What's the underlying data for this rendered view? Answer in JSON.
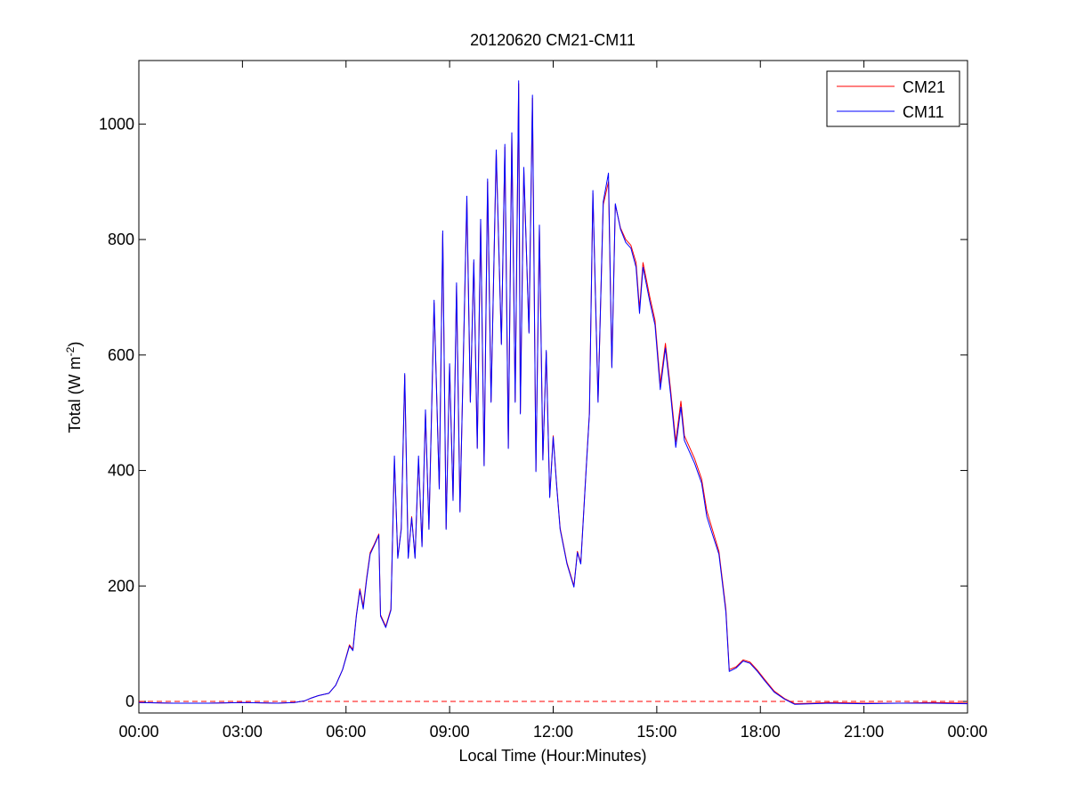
{
  "chart_data": {
    "type": "line",
    "title": "20120620 CM21-CM11",
    "xlabel": "Local Time (Hour:Minutes)",
    "ylabel_main": "Total (W m",
    "ylabel_sup": "-2",
    "ylabel_close": ")",
    "xlim_hours": [
      0,
      24
    ],
    "ylim": [
      -20,
      1110
    ],
    "x_ticks": [
      {
        "hour": 0,
        "label": "00:00"
      },
      {
        "hour": 3,
        "label": "03:00"
      },
      {
        "hour": 6,
        "label": "06:00"
      },
      {
        "hour": 9,
        "label": "09:00"
      },
      {
        "hour": 12,
        "label": "12:00"
      },
      {
        "hour": 15,
        "label": "15:00"
      },
      {
        "hour": 18,
        "label": "18:00"
      },
      {
        "hour": 21,
        "label": "21:00"
      },
      {
        "hour": 24,
        "label": "00:00"
      }
    ],
    "y_ticks": [
      0,
      200,
      400,
      600,
      800,
      1000
    ],
    "zero_line": {
      "y": 0,
      "style": "dashed",
      "color": "#ff0000"
    },
    "legend_position": "top-right",
    "series": [
      {
        "name": "CM21",
        "color": "#ff0000",
        "points": [
          [
            0,
            -2
          ],
          [
            1,
            -3
          ],
          [
            2,
            -3
          ],
          [
            3,
            -2
          ],
          [
            4,
            -3
          ],
          [
            4.5,
            -2
          ],
          [
            4.8,
            1
          ],
          [
            5,
            6
          ],
          [
            5.2,
            10
          ],
          [
            5.5,
            14
          ],
          [
            5.7,
            28
          ],
          [
            5.9,
            55
          ],
          [
            6.1,
            98
          ],
          [
            6.2,
            90
          ],
          [
            6.3,
            150
          ],
          [
            6.4,
            195
          ],
          [
            6.5,
            165
          ],
          [
            6.6,
            215
          ],
          [
            6.7,
            258
          ],
          [
            6.8,
            270
          ],
          [
            6.95,
            290
          ],
          [
            7.0,
            150
          ],
          [
            7.15,
            130
          ],
          [
            7.3,
            160
          ],
          [
            7.4,
            420
          ],
          [
            7.5,
            250
          ],
          [
            7.6,
            300
          ],
          [
            7.7,
            565
          ],
          [
            7.8,
            250
          ],
          [
            7.9,
            320
          ],
          [
            8.0,
            250
          ],
          [
            8.1,
            420
          ],
          [
            8.2,
            270
          ],
          [
            8.3,
            500
          ],
          [
            8.4,
            300
          ],
          [
            8.55,
            690
          ],
          [
            8.7,
            370
          ],
          [
            8.8,
            810
          ],
          [
            8.9,
            300
          ],
          [
            9.0,
            580
          ],
          [
            9.1,
            350
          ],
          [
            9.2,
            720
          ],
          [
            9.3,
            330
          ],
          [
            9.5,
            870
          ],
          [
            9.6,
            520
          ],
          [
            9.7,
            760
          ],
          [
            9.8,
            440
          ],
          [
            9.9,
            830
          ],
          [
            10.0,
            410
          ],
          [
            10.1,
            900
          ],
          [
            10.2,
            520
          ],
          [
            10.35,
            950
          ],
          [
            10.5,
            620
          ],
          [
            10.6,
            960
          ],
          [
            10.7,
            440
          ],
          [
            10.8,
            980
          ],
          [
            10.9,
            520
          ],
          [
            11.0,
            1070
          ],
          [
            11.05,
            500
          ],
          [
            11.15,
            920
          ],
          [
            11.3,
            640
          ],
          [
            11.4,
            1045
          ],
          [
            11.5,
            400
          ],
          [
            11.6,
            820
          ],
          [
            11.7,
            420
          ],
          [
            11.8,
            605
          ],
          [
            11.9,
            355
          ],
          [
            12.0,
            460
          ],
          [
            12.1,
            375
          ],
          [
            12.2,
            300
          ],
          [
            12.4,
            240
          ],
          [
            12.6,
            200
          ],
          [
            12.7,
            260
          ],
          [
            12.8,
            240
          ],
          [
            12.95,
            400
          ],
          [
            13.05,
            500
          ],
          [
            13.15,
            880
          ],
          [
            13.3,
            520
          ],
          [
            13.45,
            860
          ],
          [
            13.6,
            900
          ],
          [
            13.7,
            580
          ],
          [
            13.8,
            860
          ],
          [
            13.95,
            820
          ],
          [
            14.1,
            800
          ],
          [
            14.25,
            790
          ],
          [
            14.4,
            760
          ],
          [
            14.5,
            680
          ],
          [
            14.6,
            760
          ],
          [
            14.8,
            700
          ],
          [
            14.95,
            660
          ],
          [
            15.1,
            550
          ],
          [
            15.25,
            620
          ],
          [
            15.4,
            540
          ],
          [
            15.55,
            450
          ],
          [
            15.7,
            520
          ],
          [
            15.8,
            460
          ],
          [
            15.95,
            440
          ],
          [
            16.1,
            420
          ],
          [
            16.3,
            385
          ],
          [
            16.45,
            330
          ],
          [
            16.6,
            300
          ],
          [
            16.8,
            260
          ],
          [
            17.0,
            160
          ],
          [
            17.1,
            55
          ],
          [
            17.3,
            60
          ],
          [
            17.5,
            72
          ],
          [
            17.7,
            68
          ],
          [
            17.9,
            55
          ],
          [
            18.1,
            40
          ],
          [
            18.4,
            18
          ],
          [
            18.7,
            5
          ],
          [
            19.0,
            -4
          ],
          [
            19.5,
            -3
          ],
          [
            20,
            -2
          ],
          [
            21,
            -3
          ],
          [
            22,
            -3
          ],
          [
            23,
            -2
          ],
          [
            24,
            -3
          ]
        ]
      },
      {
        "name": "CM11",
        "color": "#0000ff",
        "points": [
          [
            0,
            -2
          ],
          [
            1,
            -3
          ],
          [
            2,
            -3
          ],
          [
            3,
            -2
          ],
          [
            4,
            -3
          ],
          [
            4.5,
            -2
          ],
          [
            4.8,
            1
          ],
          [
            5,
            6
          ],
          [
            5.2,
            10
          ],
          [
            5.5,
            14
          ],
          [
            5.7,
            28
          ],
          [
            5.9,
            55
          ],
          [
            6.1,
            96
          ],
          [
            6.2,
            88
          ],
          [
            6.3,
            148
          ],
          [
            6.4,
            192
          ],
          [
            6.5,
            160
          ],
          [
            6.6,
            212
          ],
          [
            6.7,
            255
          ],
          [
            6.8,
            268
          ],
          [
            6.95,
            288
          ],
          [
            7.0,
            148
          ],
          [
            7.15,
            128
          ],
          [
            7.3,
            158
          ],
          [
            7.4,
            425
          ],
          [
            7.5,
            248
          ],
          [
            7.6,
            298
          ],
          [
            7.7,
            568
          ],
          [
            7.8,
            248
          ],
          [
            7.9,
            318
          ],
          [
            8.0,
            248
          ],
          [
            8.1,
            425
          ],
          [
            8.2,
            268
          ],
          [
            8.3,
            505
          ],
          [
            8.4,
            298
          ],
          [
            8.55,
            695
          ],
          [
            8.7,
            368
          ],
          [
            8.8,
            815
          ],
          [
            8.9,
            298
          ],
          [
            9.0,
            585
          ],
          [
            9.1,
            348
          ],
          [
            9.2,
            725
          ],
          [
            9.3,
            328
          ],
          [
            9.5,
            875
          ],
          [
            9.6,
            518
          ],
          [
            9.7,
            765
          ],
          [
            9.8,
            438
          ],
          [
            9.9,
            835
          ],
          [
            10.0,
            408
          ],
          [
            10.1,
            905
          ],
          [
            10.2,
            518
          ],
          [
            10.35,
            955
          ],
          [
            10.5,
            618
          ],
          [
            10.6,
            965
          ],
          [
            10.7,
            438
          ],
          [
            10.8,
            985
          ],
          [
            10.9,
            518
          ],
          [
            11.0,
            1075
          ],
          [
            11.05,
            498
          ],
          [
            11.15,
            925
          ],
          [
            11.3,
            638
          ],
          [
            11.4,
            1050
          ],
          [
            11.5,
            398
          ],
          [
            11.6,
            825
          ],
          [
            11.7,
            418
          ],
          [
            11.8,
            608
          ],
          [
            11.9,
            353
          ],
          [
            12.0,
            458
          ],
          [
            12.1,
            373
          ],
          [
            12.2,
            298
          ],
          [
            12.4,
            238
          ],
          [
            12.6,
            198
          ],
          [
            12.7,
            258
          ],
          [
            12.8,
            238
          ],
          [
            12.95,
            398
          ],
          [
            13.05,
            498
          ],
          [
            13.15,
            885
          ],
          [
            13.3,
            518
          ],
          [
            13.45,
            865
          ],
          [
            13.6,
            915
          ],
          [
            13.7,
            578
          ],
          [
            13.8,
            862
          ],
          [
            13.95,
            818
          ],
          [
            14.1,
            795
          ],
          [
            14.25,
            785
          ],
          [
            14.4,
            752
          ],
          [
            14.5,
            672
          ],
          [
            14.6,
            752
          ],
          [
            14.8,
            692
          ],
          [
            14.95,
            652
          ],
          [
            15.1,
            540
          ],
          [
            15.25,
            612
          ],
          [
            15.4,
            532
          ],
          [
            15.55,
            440
          ],
          [
            15.7,
            510
          ],
          [
            15.8,
            452
          ],
          [
            15.95,
            432
          ],
          [
            16.1,
            412
          ],
          [
            16.3,
            378
          ],
          [
            16.45,
            320
          ],
          [
            16.6,
            292
          ],
          [
            16.8,
            255
          ],
          [
            17.0,
            155
          ],
          [
            17.1,
            52
          ],
          [
            17.3,
            58
          ],
          [
            17.5,
            70
          ],
          [
            17.7,
            66
          ],
          [
            17.9,
            53
          ],
          [
            18.1,
            38
          ],
          [
            18.4,
            16
          ],
          [
            18.7,
            4
          ],
          [
            19.0,
            -5
          ],
          [
            19.5,
            -4
          ],
          [
            20,
            -3
          ],
          [
            21,
            -4
          ],
          [
            22,
            -3
          ],
          [
            23,
            -3
          ],
          [
            24,
            -4
          ]
        ]
      }
    ]
  }
}
